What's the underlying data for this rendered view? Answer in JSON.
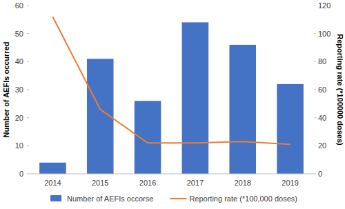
{
  "chart_data": {
    "type": "bar",
    "categories": [
      "2014",
      "2015",
      "2016",
      "2017",
      "2018",
      "2019"
    ],
    "series": [
      {
        "name": "Number of AEFIs occorse",
        "type": "bar",
        "color": "#4472c4",
        "values": [
          4,
          41,
          26,
          54,
          46,
          32
        ]
      },
      {
        "name": "Reporting rate (*100,000 doses)",
        "type": "line",
        "axis": "y2",
        "color": "#ed7d31",
        "values": [
          112,
          46,
          22,
          22,
          23,
          21
        ]
      }
    ],
    "ylabel": "Number of AEFIs occurred",
    "y2label": "Reporting rate (*100000 doses)",
    "ylim": [
      0,
      60
    ],
    "yticks": [
      0,
      10,
      20,
      30,
      40,
      50,
      60
    ],
    "y2lim": [
      0,
      120
    ],
    "y2ticks": [
      0,
      20,
      40,
      60,
      80,
      100,
      120
    ],
    "grid": false,
    "legend": "bottom"
  }
}
